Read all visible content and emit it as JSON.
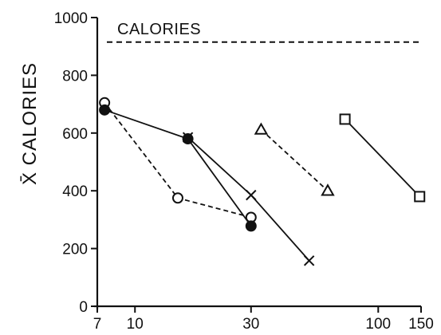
{
  "chart_data": {
    "type": "line",
    "title": "",
    "xlabel": "",
    "ylabel": "X̄ CALORIES",
    "x_scale": "log",
    "xlim": [
      7,
      150
    ],
    "ylim": [
      0,
      1000
    ],
    "x_ticks": [
      7,
      10,
      30,
      100,
      150
    ],
    "x_tick_labels": [
      "7",
      "10",
      "30",
      "100",
      "150"
    ],
    "y_ticks": [
      0,
      200,
      400,
      600,
      800,
      1000
    ],
    "y_tick_labels": [
      "0",
      "200",
      "400",
      "600",
      "800",
      "1000"
    ],
    "grid": false,
    "legend": "none",
    "reference_line": {
      "label": "CALORIES",
      "y": 915,
      "style": "dashed"
    },
    "series": [
      {
        "marker": "open-circle",
        "line_style": "dashed",
        "x": [
          7.5,
          15,
          30
        ],
        "y": [
          705,
          375,
          308
        ]
      },
      {
        "marker": "filled-circle",
        "line_style": "solid",
        "x": [
          7.5,
          16.5,
          30
        ],
        "y": [
          680,
          580,
          278
        ]
      },
      {
        "marker": "cross",
        "line_style": "solid",
        "x": [
          16.5,
          30,
          52
        ],
        "y": [
          585,
          385,
          158
        ]
      },
      {
        "marker": "open-triangle",
        "line_style": "dashed",
        "x": [
          33,
          62
        ],
        "y": [
          612,
          400
        ]
      },
      {
        "marker": "open-square",
        "line_style": "solid",
        "x": [
          73,
          148
        ],
        "y": [
          648,
          380
        ]
      }
    ]
  }
}
